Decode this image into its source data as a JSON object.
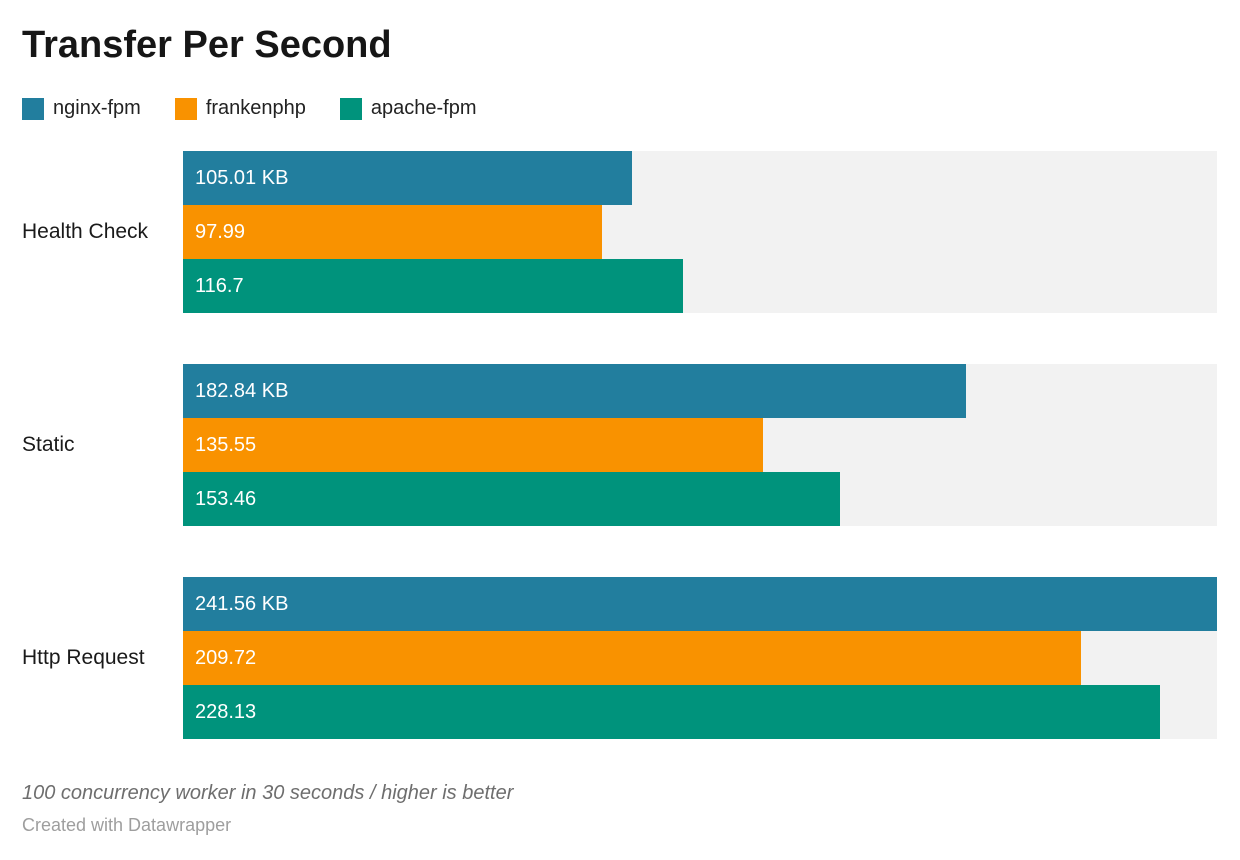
{
  "title": "Transfer Per Second",
  "legend": [
    {
      "label": "nginx-fpm",
      "color": "#227e9e"
    },
    {
      "label": "frankenphp",
      "color": "#f99200"
    },
    {
      "label": "apache-fpm",
      "color": "#00937c"
    }
  ],
  "footer": {
    "note": "100 concurrency worker in 30 seconds / higher is better",
    "credit": "Created with Datawrapper"
  },
  "chart_data": {
    "type": "bar",
    "orientation": "horizontal",
    "title": "Transfer Per Second",
    "unit": "KB",
    "axis_max": 241.56,
    "track_color": "#f2f2f2",
    "legend_position": "top",
    "grid": false,
    "categories": [
      "Health Check",
      "Static",
      "Http Request"
    ],
    "series": [
      {
        "name": "nginx-fpm",
        "color": "#227e9e",
        "values": [
          105.01,
          182.84,
          241.56
        ],
        "labels": [
          "105.01 KB",
          "182.84 KB",
          "241.56 KB"
        ]
      },
      {
        "name": "frankenphp",
        "color": "#f99200",
        "values": [
          97.99,
          135.55,
          209.72
        ],
        "labels": [
          "97.99",
          "135.55",
          "209.72"
        ]
      },
      {
        "name": "apache-fpm",
        "color": "#00937c",
        "values": [
          116.7,
          153.46,
          228.13
        ],
        "labels": [
          "116.7",
          "153.46",
          "228.13"
        ]
      }
    ],
    "note": "100 concurrency worker in 30 seconds / higher is better",
    "credit": "Created with Datawrapper"
  }
}
